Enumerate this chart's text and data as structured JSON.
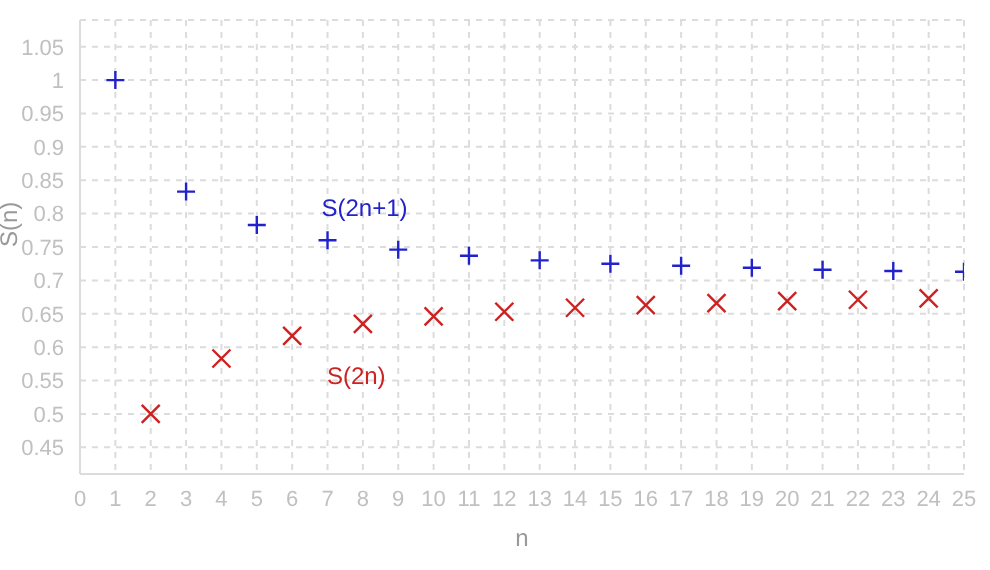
{
  "chart_data": {
    "type": "scatter",
    "xlabel": "n",
    "ylabel": "S(n)",
    "xlim": [
      0,
      25
    ],
    "xticks": [
      0,
      1,
      2,
      3,
      4,
      5,
      6,
      7,
      8,
      9,
      10,
      11,
      12,
      13,
      14,
      15,
      16,
      17,
      18,
      19,
      20,
      21,
      22,
      23,
      24,
      25
    ],
    "ylim": [
      0.41,
      1.09
    ],
    "yticks": [
      0.45,
      0.5,
      0.55,
      0.6,
      0.65,
      0.7,
      0.75,
      0.8,
      0.85,
      0.9,
      0.95,
      1,
      1.05
    ],
    "grid": true,
    "marker": "cross",
    "series": [
      {
        "name": "S(2n+1)",
        "color": "#2222cc",
        "x": [
          1,
          3,
          5,
          7,
          9,
          11,
          13,
          15,
          17,
          19,
          21,
          23,
          25
        ],
        "values": [
          1,
          0.833,
          0.783,
          0.76,
          0.746,
          0.737,
          0.73,
          0.725,
          0.722,
          0.719,
          0.716,
          0.714,
          0.713
        ]
      },
      {
        "name": "S(2n)",
        "color": "#cc2222",
        "x": [
          2,
          4,
          6,
          8,
          10,
          12,
          14,
          16,
          18,
          20,
          22,
          24
        ],
        "values": [
          0.5,
          0.583,
          0.617,
          0.635,
          0.646,
          0.653,
          0.659,
          0.663,
          0.666,
          0.669,
          0.671,
          0.673
        ]
      }
    ]
  }
}
